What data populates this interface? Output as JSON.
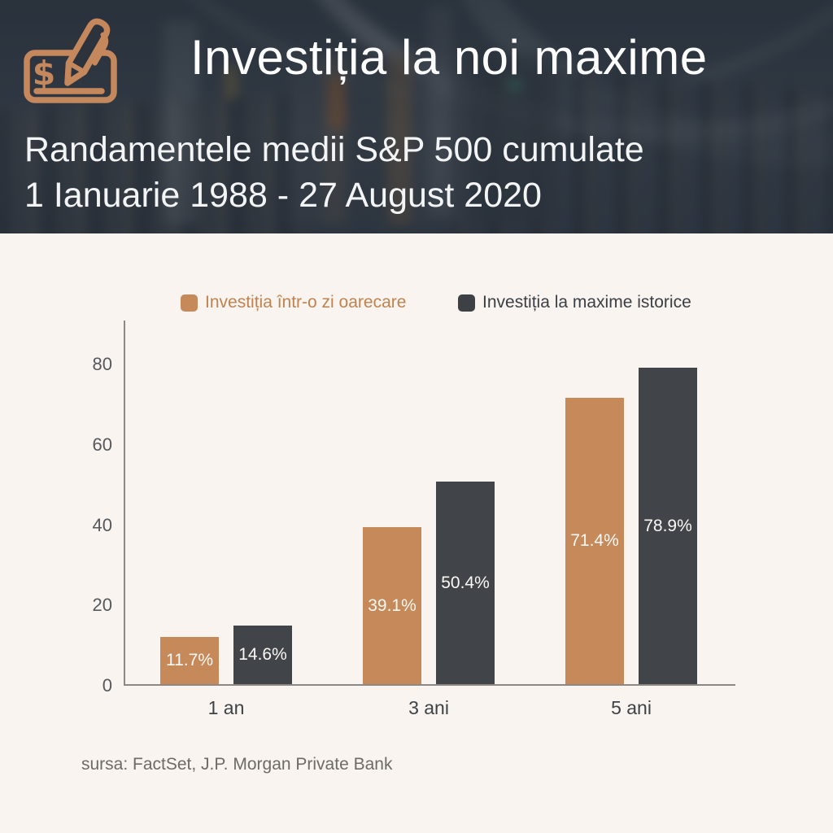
{
  "header": {
    "title": "Investiția la noi maxime",
    "subtitle_line1": "Randamentele medii S&P 500 cumulate",
    "subtitle_line2": "1 Ianuarie 1988 - 27 August 2020",
    "icon": "check-with-dollar-and-pencil"
  },
  "colors": {
    "accent_orange": "#c6895a",
    "dark_gray": "#414549",
    "page_background": "#f9f4ef",
    "header_background": "#333c46",
    "axis_line": "#8b8885",
    "icon_stroke": "#c5875c"
  },
  "legend": {
    "items": [
      {
        "label": "Investiția într-o zi oarecare",
        "color": "#c6895a",
        "text_color": "#c0824f"
      },
      {
        "label": "Investiția la maxime istorice",
        "color": "#3d4145",
        "text_color": "#3a3f45"
      }
    ]
  },
  "chart_data": {
    "type": "bar",
    "title": "Randamentele medii S&P 500 cumulate 1 Ianuarie 1988 - 27 August 2020",
    "categories": [
      "1 an",
      "3 ani",
      "5 ani"
    ],
    "series": [
      {
        "name": "Investiția într-o zi oarecare",
        "color": "#c6895a",
        "values": [
          11.7,
          39.1,
          71.4
        ]
      },
      {
        "name": "Investiția la maxime istorice",
        "color": "#414549",
        "values": [
          14.6,
          50.4,
          78.9
        ]
      }
    ],
    "value_suffix": "%",
    "value_labels": "inside-center",
    "xlabel": "",
    "ylabel": "",
    "ylim": [
      0,
      91
    ],
    "yticks": [
      0,
      20,
      40,
      60,
      80
    ],
    "grid": false,
    "legend_position": "top"
  },
  "source": "sursa: FactSet, J.P. Morgan Private Bank"
}
